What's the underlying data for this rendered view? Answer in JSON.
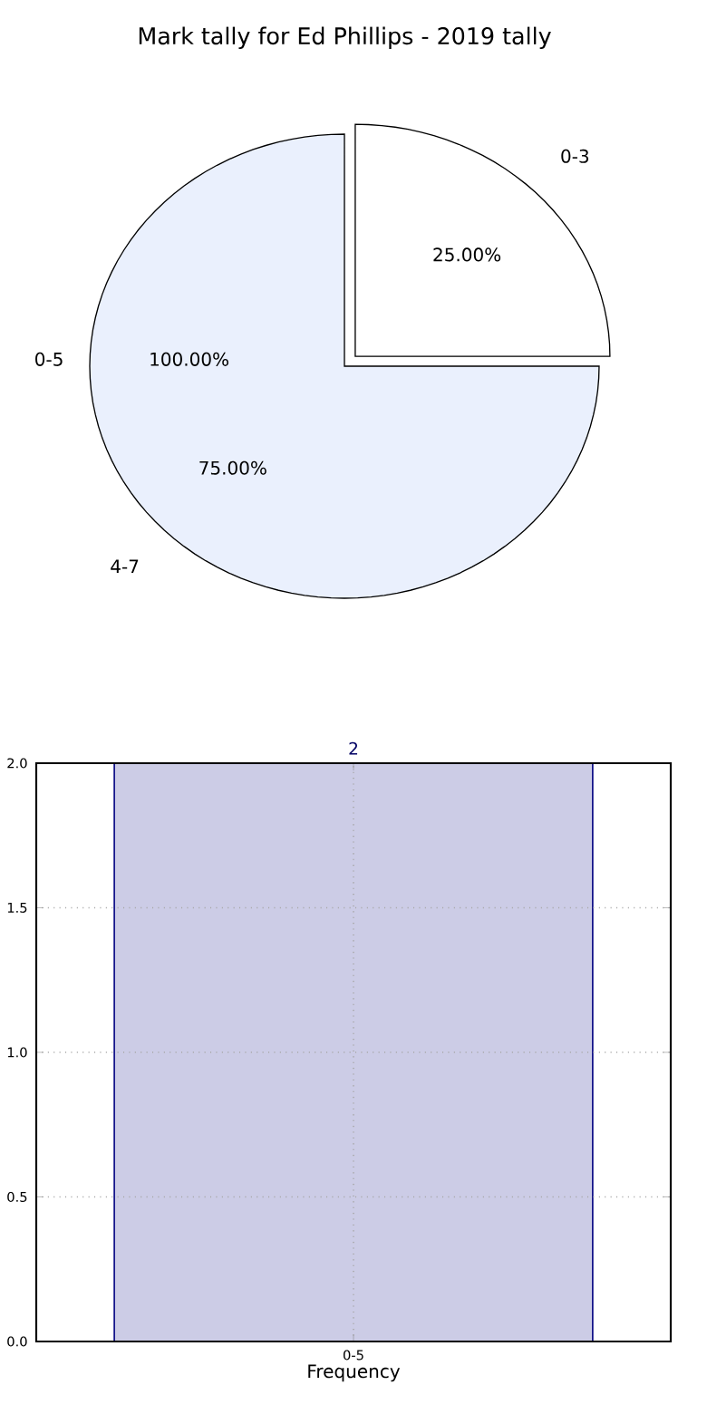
{
  "chart_data": [
    {
      "type": "pie",
      "title": "Mark tally for Ed Phillips - 2019 tally",
      "categories": [
        "0-3",
        "4-7"
      ],
      "values": [
        25,
        75
      ],
      "colors": [
        "#ffffff",
        "#eaf0fd"
      ],
      "value_labels": [
        "25.00%",
        "75.00%"
      ],
      "annotations": [
        "0-5",
        "100.00%"
      ]
    },
    {
      "type": "bar",
      "categories": [
        "0-5"
      ],
      "values": [
        2
      ],
      "color": "#cccce6",
      "ylim": [
        0,
        2
      ],
      "yticks": [
        {
          "value": 0,
          "label": "0.0"
        },
        {
          "value": 0.5,
          "label": "0.5"
        },
        {
          "value": 1,
          "label": "1.0"
        },
        {
          "value": 1.5,
          "label": "1.5"
        },
        {
          "value": 2,
          "label": "2.0"
        }
      ],
      "grid": true,
      "xlabel": "Frequency",
      "data_labels": true
    }
  ]
}
